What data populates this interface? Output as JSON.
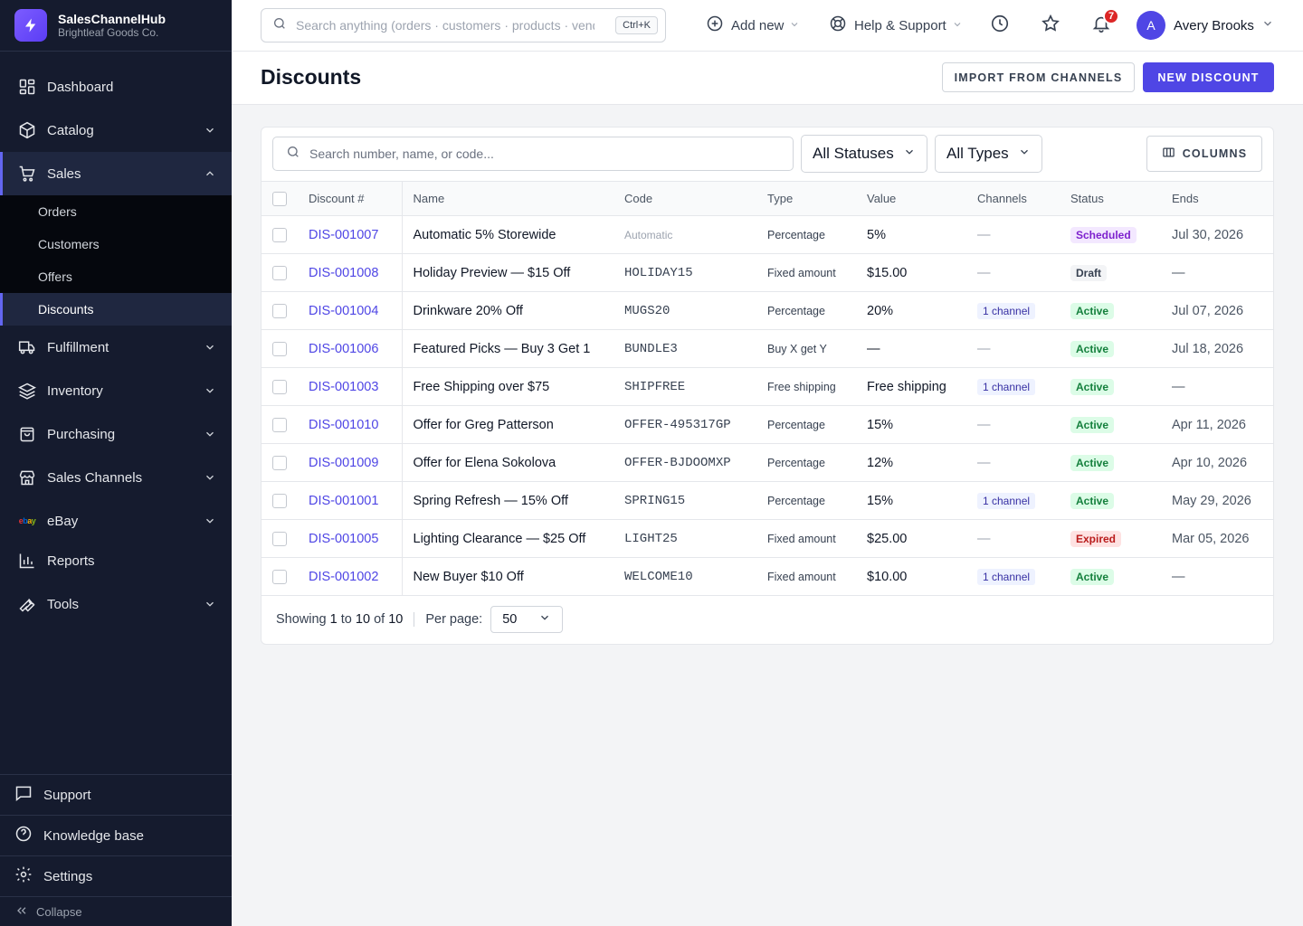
{
  "brand": {
    "name": "SalesChannelHub",
    "company": "Brightleaf Goods Co."
  },
  "sidebar": {
    "items": [
      {
        "label": "Dashboard"
      },
      {
        "label": "Catalog"
      },
      {
        "label": "Sales"
      },
      {
        "label": "Fulfillment"
      },
      {
        "label": "Inventory"
      },
      {
        "label": "Purchasing"
      },
      {
        "label": "Sales Channels"
      },
      {
        "label": "eBay"
      },
      {
        "label": "Reports"
      },
      {
        "label": "Tools"
      }
    ],
    "sales_sub": [
      {
        "label": "Orders"
      },
      {
        "label": "Customers"
      },
      {
        "label": "Offers"
      },
      {
        "label": "Discounts"
      }
    ],
    "bottom": {
      "support": "Support",
      "knowledge": "Knowledge base",
      "settings": "Settings",
      "collapse": "Collapse"
    }
  },
  "topbar": {
    "search_placeholder": "Search anything (orders · customers · products · vendors)",
    "shortcut": "Ctrl+K",
    "add_new": "Add new",
    "help": "Help & Support",
    "notifications_count": "7",
    "user_initial": "A",
    "user_name": "Avery Brooks"
  },
  "page": {
    "title": "Discounts",
    "import_label": "IMPORT FROM CHANNELS",
    "new_label": "NEW DISCOUNT"
  },
  "filters": {
    "search_placeholder": "Search number, name, or code...",
    "status": "All Statuses",
    "type": "All Types",
    "columns_label": "COLUMNS"
  },
  "table": {
    "headers": {
      "number": "Discount #",
      "name": "Name",
      "code": "Code",
      "type": "Type",
      "value": "Value",
      "channels": "Channels",
      "status": "Status",
      "ends": "Ends"
    },
    "rows": [
      {
        "number": "DIS-001007",
        "name": "Automatic 5% Storewide",
        "code": "Automatic",
        "code_auto": true,
        "type": "Percentage",
        "value": "5%",
        "channels": "—",
        "status": "Scheduled",
        "ends": "Jul 30, 2026"
      },
      {
        "number": "DIS-001008",
        "name": "Holiday Preview — $15 Off",
        "code": "HOLIDAY15",
        "type": "Fixed amount",
        "value": "$15.00",
        "channels": "—",
        "status": "Draft",
        "ends": "—"
      },
      {
        "number": "DIS-001004",
        "name": "Drinkware 20% Off",
        "code": "MUGS20",
        "type": "Percentage",
        "value": "20%",
        "channels": "1 channel",
        "status": "Active",
        "ends": "Jul 07, 2026"
      },
      {
        "number": "DIS-001006",
        "name": "Featured Picks — Buy 3 Get 1",
        "code": "BUNDLE3",
        "type": "Buy X get Y",
        "value": "—",
        "channels": "—",
        "status": "Active",
        "ends": "Jul 18, 2026"
      },
      {
        "number": "DIS-001003",
        "name": "Free Shipping over $75",
        "code": "SHIPFREE",
        "type": "Free shipping",
        "value": "Free shipping",
        "channels": "1 channel",
        "status": "Active",
        "ends": "—"
      },
      {
        "number": "DIS-001010",
        "name": "Offer for Greg Patterson",
        "code": "OFFER-495317GP",
        "type": "Percentage",
        "value": "15%",
        "channels": "—",
        "status": "Active",
        "ends": "Apr 11, 2026"
      },
      {
        "number": "DIS-001009",
        "name": "Offer for Elena Sokolova",
        "code": "OFFER-BJDOOMXP",
        "type": "Percentage",
        "value": "12%",
        "channels": "—",
        "status": "Active",
        "ends": "Apr 10, 2026"
      },
      {
        "number": "DIS-001001",
        "name": "Spring Refresh — 15% Off",
        "code": "SPRING15",
        "type": "Percentage",
        "value": "15%",
        "channels": "1 channel",
        "status": "Active",
        "ends": "May 29, 2026"
      },
      {
        "number": "DIS-001005",
        "name": "Lighting Clearance — $25 Off",
        "code": "LIGHT25",
        "type": "Fixed amount",
        "value": "$25.00",
        "channels": "—",
        "status": "Expired",
        "ends": "Mar 05, 2026"
      },
      {
        "number": "DIS-001002",
        "name": "New Buyer $10 Off",
        "code": "WELCOME10",
        "type": "Fixed amount",
        "value": "$10.00",
        "channels": "1 channel",
        "status": "Active",
        "ends": "—"
      }
    ]
  },
  "status_colors": {
    "Scheduled": {
      "bg": "#f3e8ff",
      "fg": "#7e22ce"
    },
    "Draft": {
      "bg": "#f3f4f6",
      "fg": "#374151"
    },
    "Active": {
      "bg": "#dcfce7",
      "fg": "#15803d"
    },
    "Expired": {
      "bg": "#fee2e2",
      "fg": "#b91c1c"
    }
  },
  "footer": {
    "showing_prefix": "Showing",
    "from": "1",
    "to_word": "to",
    "to": "10",
    "of_word": "of",
    "total": "10",
    "per_page_label": "Per page:",
    "per_page": "50"
  },
  "colors": {
    "accent": "#4f46e5",
    "sidebar_bg": "#151b2e"
  }
}
